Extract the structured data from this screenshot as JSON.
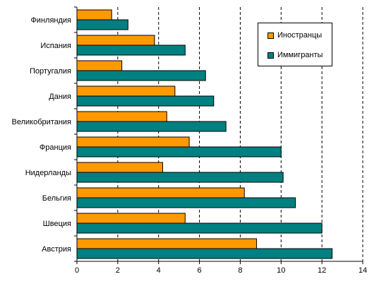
{
  "chart_data": {
    "type": "bar",
    "orientation": "horizontal",
    "categories": [
      "Финляндия",
      "Испания",
      "Португалия",
      "Дания",
      "Великобритания",
      "Франция",
      "Нидерланды",
      "Бельгия",
      "Швеция",
      "Австрия"
    ],
    "series": [
      {
        "name": "Иностранцы",
        "color": "#FF9900",
        "values": [
          1.7,
          3.8,
          2.2,
          4.8,
          4.4,
          5.5,
          4.2,
          8.2,
          5.3,
          8.8
        ]
      },
      {
        "name": "Иммигранты",
        "color": "#008080",
        "values": [
          2.5,
          5.3,
          6.3,
          6.7,
          7.3,
          10.0,
          10.1,
          10.7,
          12.0,
          12.5
        ]
      }
    ],
    "xlim": [
      0,
      14
    ],
    "x_ticks": [
      "0",
      "2",
      "4",
      "6",
      "8",
      "10",
      "12",
      "14"
    ],
    "grid": "vertical-dashed",
    "legend_position": "top-right",
    "title": "",
    "xlabel": "",
    "ylabel": ""
  }
}
